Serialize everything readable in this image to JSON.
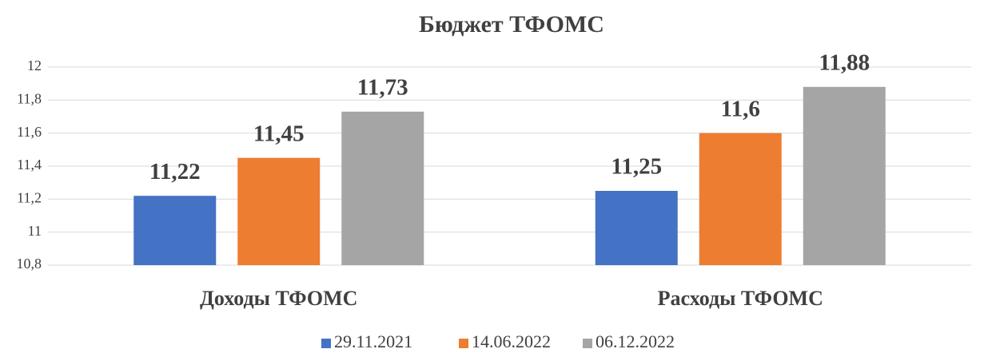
{
  "chart_data": {
    "type": "bar",
    "title": "Бюджет ТФОМС",
    "categories": [
      "Доходы ТФОМС",
      "Расходы ТФОМС"
    ],
    "series": [
      {
        "name": "29.11.2021",
        "color": "#4472c4",
        "values": [
          11.22,
          11.25
        ],
        "value_labels": [
          "11,22",
          "11,25"
        ]
      },
      {
        "name": "14.06.2022",
        "color": "#ed7d31",
        "values": [
          11.45,
          11.6
        ],
        "value_labels": [
          "11,45",
          "11,6"
        ]
      },
      {
        "name": "06.12.2022",
        "color": "#a5a5a5",
        "values": [
          11.73,
          11.88
        ],
        "value_labels": [
          "11,73",
          "11,88"
        ]
      }
    ],
    "ylim": [
      10.8,
      12
    ],
    "yticks": [
      {
        "value": 10.8,
        "label": "10,8"
      },
      11,
      {
        "value": 11.2,
        "label": "11,2"
      },
      {
        "value": 11.4,
        "label": "11,4"
      },
      {
        "value": 11.6,
        "label": "11,6"
      },
      {
        "value": 11.8,
        "label": "11,8"
      },
      12
    ],
    "grid": true,
    "legend": "bottom"
  }
}
